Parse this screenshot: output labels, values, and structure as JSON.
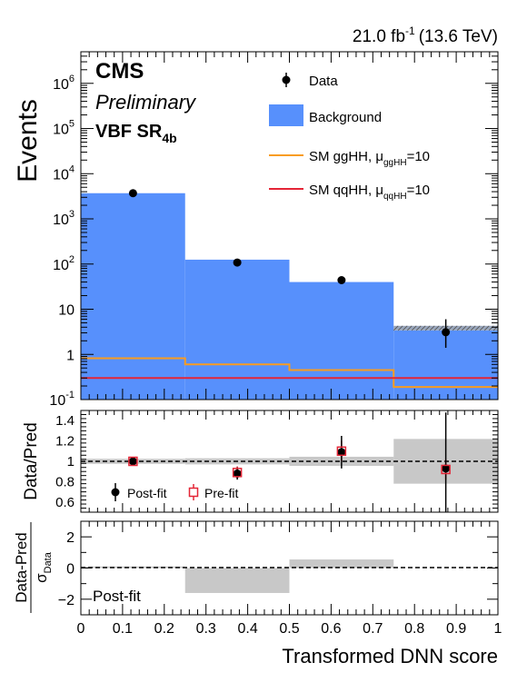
{
  "header": {
    "lumi": "21.0 fb",
    "lumi_sup": "-1",
    "energy": "(13.6 TeV)",
    "cms": "CMS",
    "preliminary": "Preliminary",
    "region_main": "VBF SR",
    "region_sub": "4b"
  },
  "legend": {
    "data": "Data",
    "background": "Background",
    "gghh_main": "SM ggHH, μ",
    "gghh_sub": "ggHH",
    "gghh_tail": "=10",
    "qqhh_main": "SM qqHH, μ",
    "qqhh_sub": "qqHH",
    "qqhh_tail": "=10"
  },
  "ratio_legend": {
    "postfit": "Post-fit",
    "prefit": "Pre-fit"
  },
  "pull_label": "Post-fit",
  "colors": {
    "background": "#5790fc",
    "gghh": "#f89c20",
    "qqhh": "#e42536",
    "band": "#c8c8c8",
    "prefit": "#e42536"
  },
  "chart_data": [
    {
      "type": "bar",
      "bins": [
        0,
        0.25,
        0.5,
        0.75,
        1.0
      ],
      "background": [
        3700,
        125,
        40,
        3.4
      ],
      "gghh": [
        0.82,
        0.6,
        0.45,
        0.19
      ],
      "qqhh": [
        0.3,
        0.3,
        0.3,
        0.3
      ],
      "data": [
        {
          "x": 0.125,
          "y": 3700,
          "err": [
            61,
            61
          ]
        },
        {
          "x": 0.375,
          "y": 108,
          "err": [
            10,
            11
          ]
        },
        {
          "x": 0.625,
          "y": 44,
          "err": [
            6.6,
            7.7
          ]
        },
        {
          "x": 0.875,
          "y": 3.1,
          "err": [
            1.7,
            2.9
          ]
        }
      ],
      "ylabel": "Events",
      "ylim": [
        0.1,
        5000000
      ],
      "log_y": true,
      "yticks": [
        {
          "v": 0.1,
          "main": "10",
          "sup": "-1"
        },
        {
          "v": 1,
          "main": "1",
          "sup": ""
        },
        {
          "v": 10,
          "main": "10",
          "sup": ""
        },
        {
          "v": 100,
          "main": "10",
          "sup": "2"
        },
        {
          "v": 1000,
          "main": "10",
          "sup": "3"
        },
        {
          "v": 10000,
          "main": "10",
          "sup": "4"
        },
        {
          "v": 100000,
          "main": "10",
          "sup": "5"
        },
        {
          "v": 1000000,
          "main": "10",
          "sup": "6"
        }
      ]
    },
    {
      "type": "scatter",
      "ylabel": "Data/Pred",
      "ylim": [
        0.5,
        1.5
      ],
      "yticks": [
        "0.6",
        "0.8",
        "1",
        "1.2",
        "1.4"
      ],
      "band": [
        {
          "lo": 0.975,
          "hi": 1.025
        },
        {
          "lo": 0.97,
          "hi": 1.03
        },
        {
          "lo": 0.955,
          "hi": 1.045
        },
        {
          "lo": 0.78,
          "hi": 1.22
        }
      ],
      "postfit": [
        {
          "x": 0.125,
          "y": 1.0,
          "err": 0.02
        },
        {
          "x": 0.375,
          "y": 0.88,
          "err": 0.06
        },
        {
          "x": 0.625,
          "y": 1.09,
          "err": 0.16
        },
        {
          "x": 0.875,
          "y": 0.93,
          "err": 0.55
        }
      ],
      "prefit": [
        {
          "x": 0.125,
          "y": 1.0,
          "err": 0.03
        },
        {
          "x": 0.375,
          "y": 0.89,
          "err": 0.06
        },
        {
          "x": 0.625,
          "y": 1.1,
          "err": 0.1
        },
        {
          "x": 0.875,
          "y": 0.92,
          "err": 0.1
        }
      ]
    },
    {
      "type": "bar",
      "ylabel_top": "Data-Pred",
      "ylabel_bottom": "σ",
      "ylabel_bottom_sub": "Data",
      "ylim": [
        -3,
        3
      ],
      "yticks": [
        "-2",
        "0",
        "2"
      ],
      "values": [
        0.1,
        -1.6,
        0.55,
        0.0
      ],
      "xlabel": "Transformed DNN score",
      "xlim": [
        0,
        1
      ],
      "xticks": [
        "0",
        "0.1",
        "0.2",
        "0.3",
        "0.4",
        "0.5",
        "0.6",
        "0.7",
        "0.8",
        "0.9",
        "1"
      ]
    }
  ]
}
